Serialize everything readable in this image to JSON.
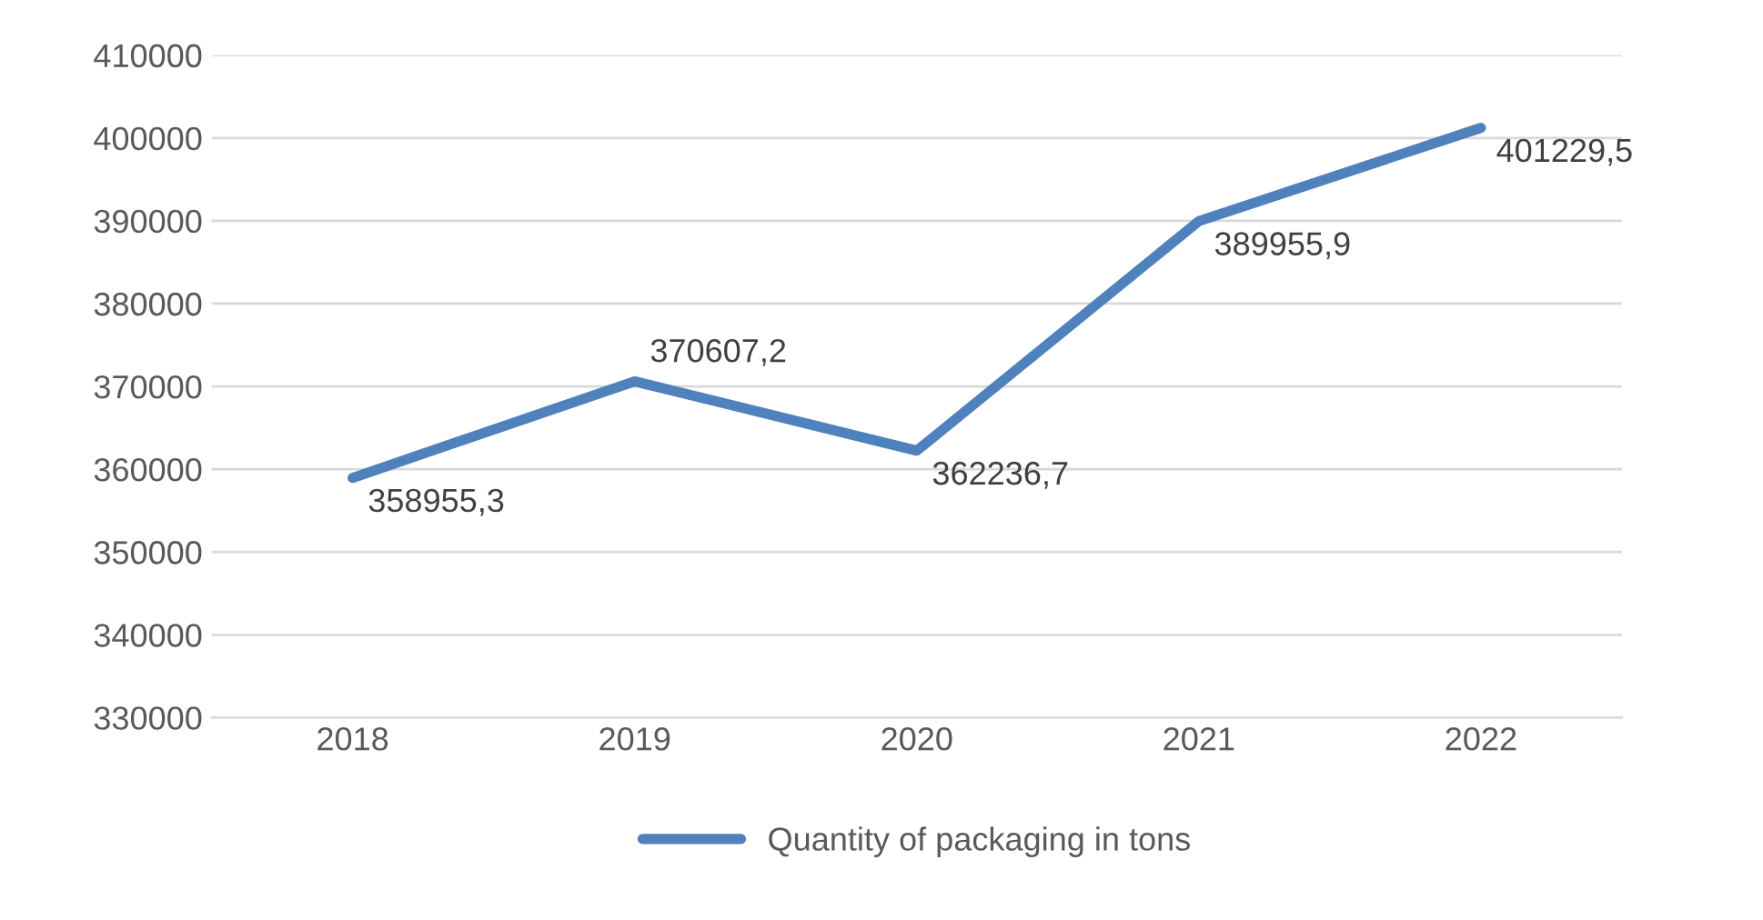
{
  "chart_data": {
    "type": "line",
    "categories": [
      "2018",
      "2019",
      "2020",
      "2021",
      "2022"
    ],
    "series": [
      {
        "name": "Quantity of packaging in tons",
        "color": "#4f81bd",
        "values": [
          358955.3,
          370607.2,
          362236.7,
          389955.9,
          401229.5
        ],
        "value_labels": [
          "358955,3",
          "370607,2",
          "362236,7",
          "389955,9",
          "401229,5"
        ]
      }
    ],
    "ylim": [
      330000,
      410000
    ],
    "yticks": [
      330000,
      340000,
      350000,
      360000,
      370000,
      380000,
      390000,
      400000,
      410000
    ],
    "grid": "y",
    "legend": "bottom",
    "marker": "none",
    "line_style": "solid"
  }
}
